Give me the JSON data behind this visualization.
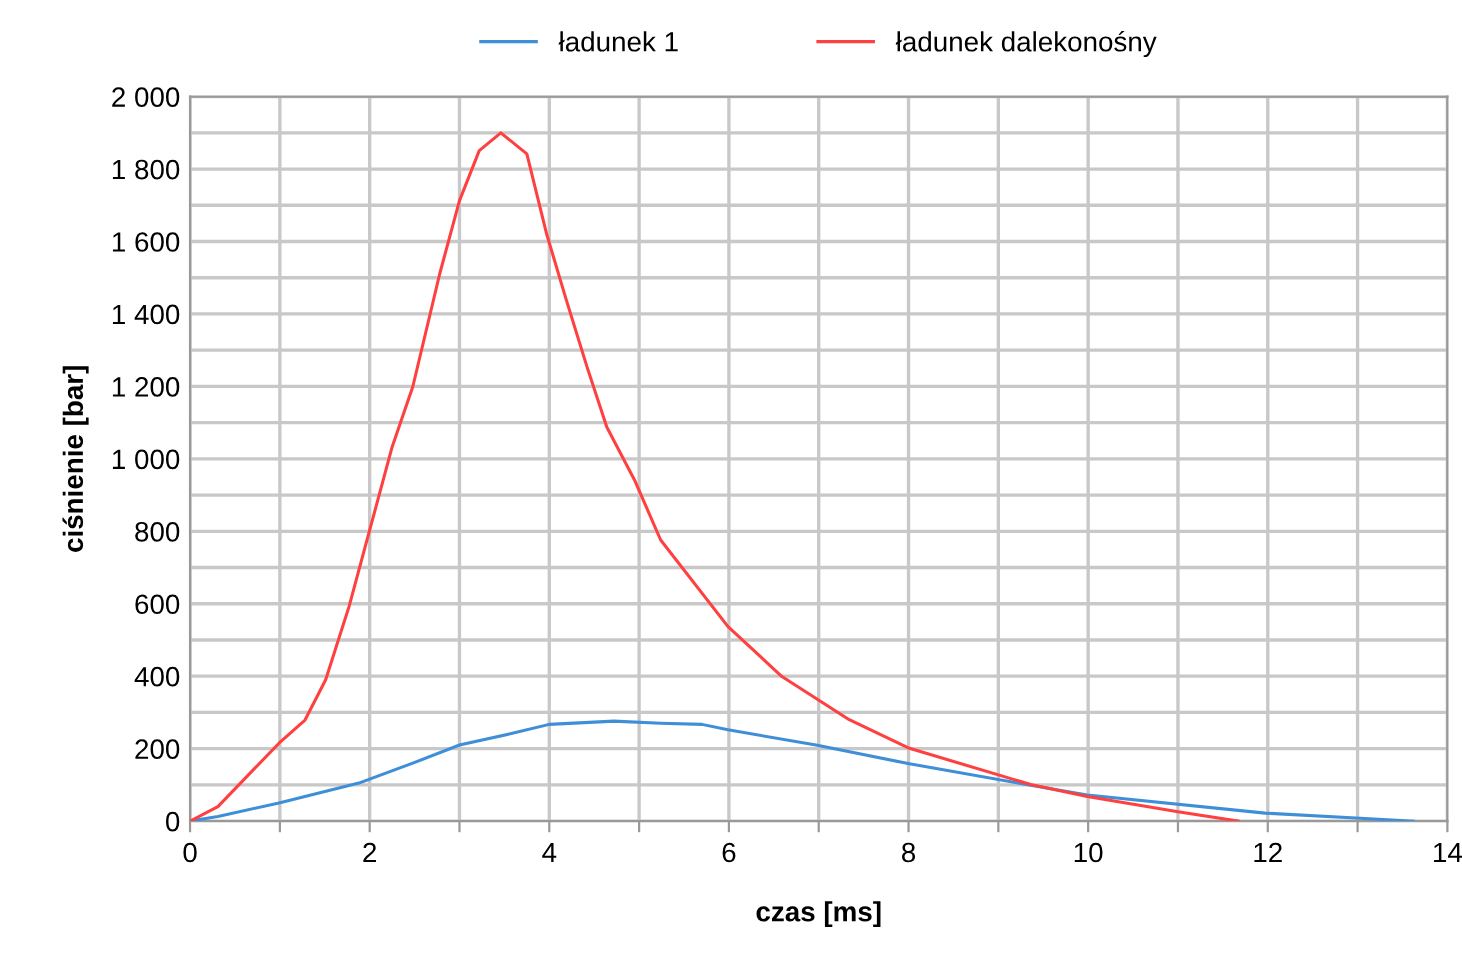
{
  "chart_data": {
    "type": "line",
    "xlabel": "czas [ms]",
    "ylabel": "ciśnienie [bar]",
    "xlim": [
      0,
      14
    ],
    "ylim": [
      0,
      2000
    ],
    "xticks": [
      0,
      {
        "value": 1,
        "label": null
      },
      2,
      {
        "value": 3,
        "label": null
      },
      4,
      {
        "value": 5,
        "label": null
      },
      6,
      {
        "value": 7,
        "label": null
      },
      8,
      {
        "value": 9,
        "label": null
      },
      10,
      {
        "value": 11,
        "label": null
      },
      12,
      {
        "value": 13,
        "label": null
      },
      14
    ],
    "yticks": [
      {
        "value": 0,
        "label": "0"
      },
      {
        "value": 100,
        "label": null
      },
      {
        "value": 200,
        "label": "200"
      },
      {
        "value": 300,
        "label": null
      },
      {
        "value": 400,
        "label": "400"
      },
      {
        "value": 500,
        "label": null
      },
      {
        "value": 600,
        "label": "600"
      },
      {
        "value": 700,
        "label": null
      },
      {
        "value": 800,
        "label": "800"
      },
      {
        "value": 900,
        "label": null
      },
      {
        "value": 1000,
        "label": "1 000"
      },
      {
        "value": 1100,
        "label": null
      },
      {
        "value": 1200,
        "label": "1 200"
      },
      {
        "value": 1300,
        "label": null
      },
      {
        "value": 1400,
        "label": "1 400"
      },
      {
        "value": 1500,
        "label": null
      },
      {
        "value": 1600,
        "label": "1 600"
      },
      {
        "value": 1700,
        "label": null
      },
      {
        "value": 1800,
        "label": "1 800"
      },
      {
        "value": 1900,
        "label": null
      },
      {
        "value": 2000,
        "label": "2 000"
      }
    ],
    "grid": true,
    "legend": "top",
    "marker": "none",
    "line_style": "solid",
    "series": [
      {
        "name": "ładunek 1",
        "color": "#3f8fd8",
        "x": [
          0,
          0.31,
          0.99,
          1.88,
          2.48,
          3.0,
          3.6,
          4.0,
          4.72,
          5.24,
          5.7,
          5.99,
          6.97,
          8.01,
          9.36,
          9.99,
          11.97,
          13.62
        ],
        "values": [
          0,
          13,
          50,
          105,
          160,
          210,
          243,
          267,
          276,
          270,
          267,
          252,
          210,
          158,
          99,
          72,
          22,
          0
        ]
      },
      {
        "name": "ładunek dalekonośny",
        "color": "#ff4040",
        "x": [
          0,
          0.31,
          0.99,
          1.28,
          1.51,
          1.77,
          1.99,
          2.25,
          2.48,
          2.78,
          3.0,
          3.22,
          3.46,
          3.75,
          3.97,
          4.19,
          4.42,
          4.64,
          4.95,
          5.24,
          5.99,
          6.59,
          7.34,
          8.01,
          9.36,
          9.99,
          11.0,
          11.67
        ],
        "values": [
          0,
          40,
          215,
          279,
          390,
          592,
          794,
          1033,
          1199,
          1511,
          1713,
          1851,
          1900,
          1842,
          1621,
          1438,
          1254,
          1088,
          941,
          776,
          537,
          399,
          280,
          201,
          101,
          68,
          26,
          0
        ]
      }
    ]
  }
}
